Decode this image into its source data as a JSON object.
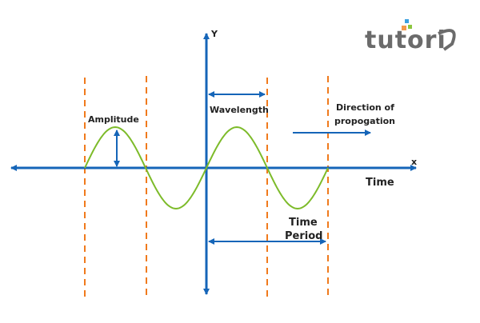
{
  "labels": {
    "y_axis": "Y",
    "x_axis": "x",
    "amplitude": "Amplitude",
    "wavelength": "Wavelength",
    "direction_line1": "Direction of",
    "direction_line2": "propogation",
    "time": "Time",
    "period_line1": "Time",
    "period_line2": "Period"
  },
  "logo": {
    "text": "tutorix"
  },
  "colors": {
    "axis": "#1565b8",
    "wave": "#7dbb2a",
    "dashed": "#f07a1c",
    "logo": "#6b6b6b"
  }
}
